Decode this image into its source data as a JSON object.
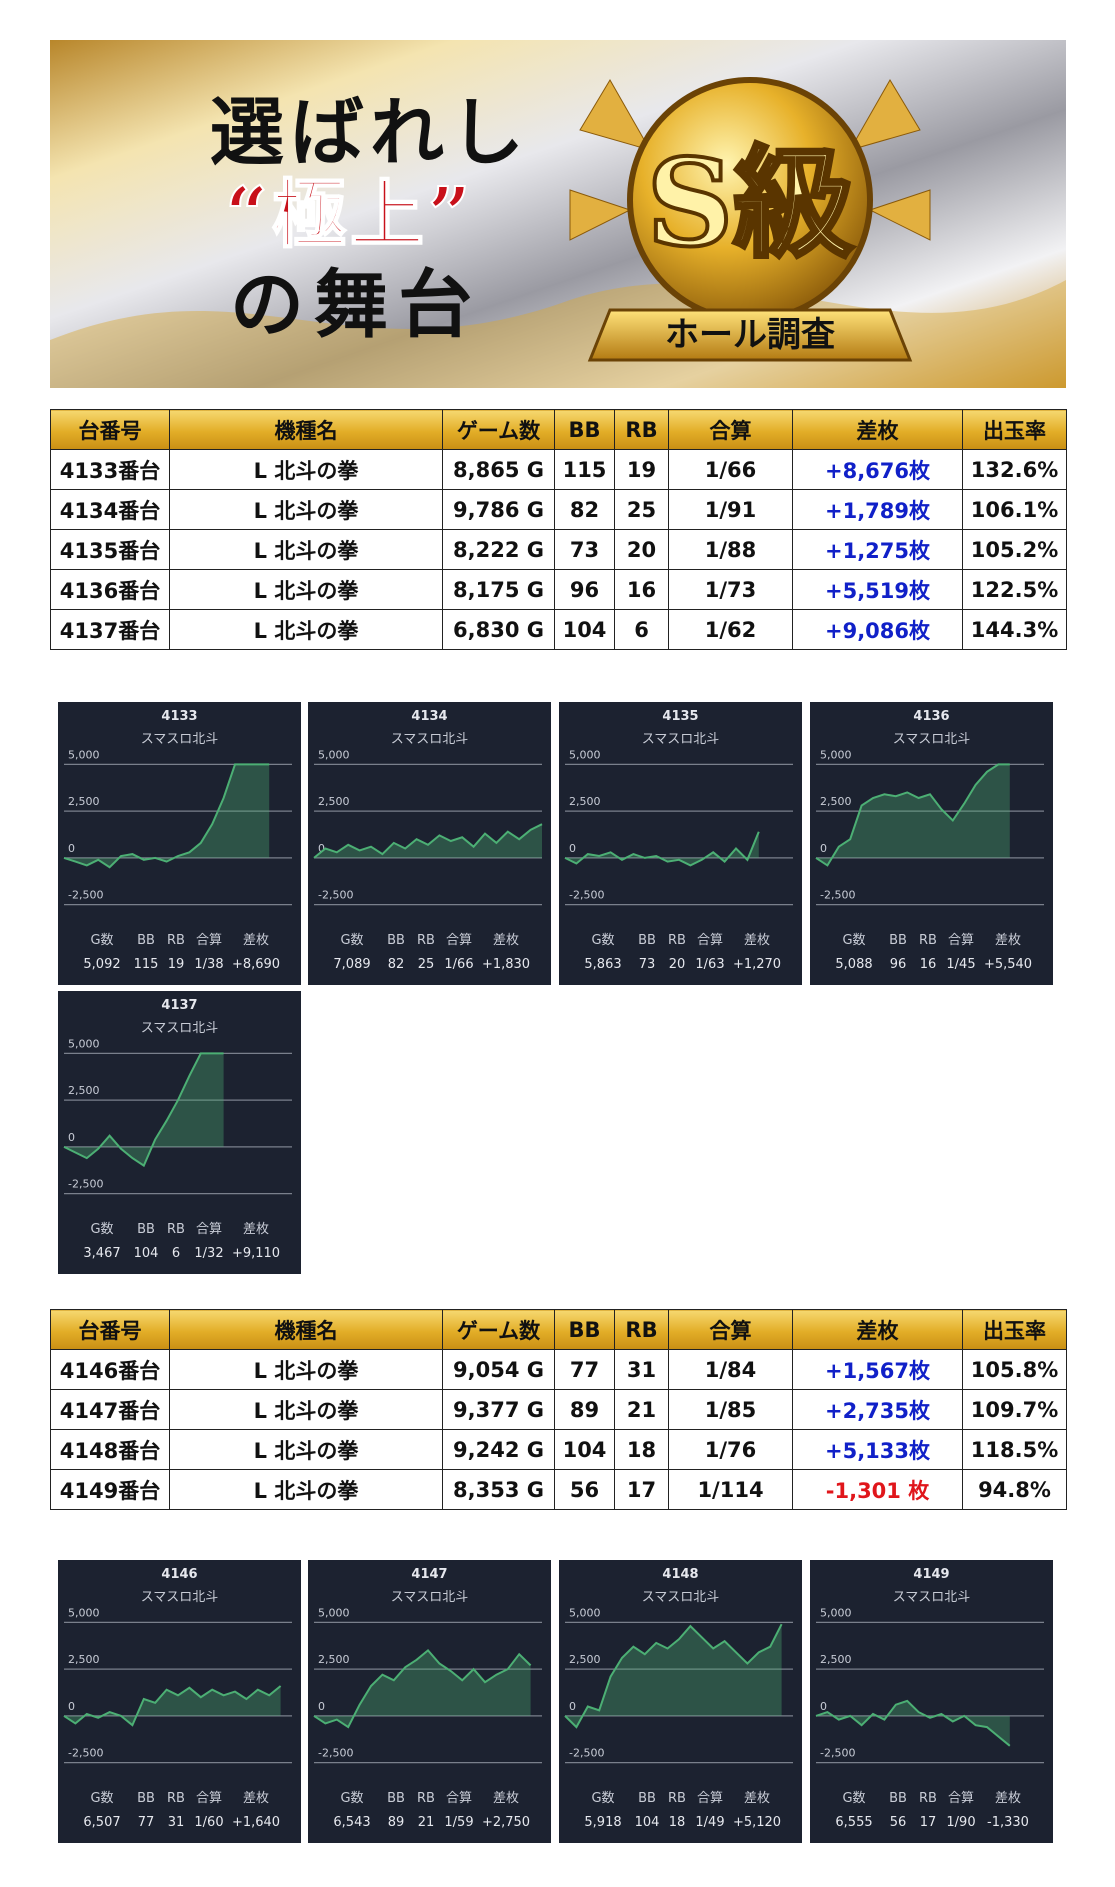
{
  "banner": {
    "line1": "選ばれし",
    "line2": "“極上”",
    "line3": "の舞台",
    "badge": "S級",
    "ribbon": "ホール調査"
  },
  "tables": [
    {
      "header": [
        "台番号",
        "機種名",
        "ゲーム数",
        "BB",
        "RB",
        "合算",
        "差枚",
        "出玉率"
      ],
      "rows": [
        [
          "4133番台",
          "L 北斗の拳",
          "8,865 G",
          "115",
          "19",
          "1/66",
          "+8,676枚",
          "132.6%"
        ],
        [
          "4134番台",
          "L 北斗の拳",
          "9,786 G",
          "82",
          "25",
          "1/91",
          "+1,789枚",
          "106.1%"
        ],
        [
          "4135番台",
          "L 北斗の拳",
          "8,222 G",
          "73",
          "20",
          "1/88",
          "+1,275枚",
          "105.2%"
        ],
        [
          "4136番台",
          "L 北斗の拳",
          "8,175 G",
          "96",
          "16",
          "1/73",
          "+5,519枚",
          "122.5%"
        ],
        [
          "4137番台",
          "L 北斗の拳",
          "6,830 G",
          "104",
          "6",
          "1/62",
          "+9,086枚",
          "144.3%"
        ]
      ]
    },
    {
      "header": [
        "台番号",
        "機種名",
        "ゲーム数",
        "BB",
        "RB",
        "合算",
        "差枚",
        "出玉率"
      ],
      "rows": [
        [
          "4146番台",
          "L 北斗の拳",
          "9,054 G",
          "77",
          "31",
          "1/84",
          "+1,567枚",
          "105.8%"
        ],
        [
          "4147番台",
          "L 北斗の拳",
          "9,377 G",
          "89",
          "21",
          "1/85",
          "+2,735枚",
          "109.7%"
        ],
        [
          "4148番台",
          "L 北斗の拳",
          "9,242 G",
          "104",
          "18",
          "1/76",
          "+5,133枚",
          "118.5%"
        ],
        [
          "4149番台",
          "L 北斗の拳",
          "8,353 G",
          "56",
          "17",
          "1/114",
          "-1,301 枚",
          "94.8%"
        ]
      ]
    }
  ],
  "chart_data": [
    {
      "type": "line",
      "title": "4133",
      "subtitle": "スマスロ北斗",
      "color": "#4caf74",
      "xlim": [
        0,
        20
      ],
      "ylim": [
        -3000,
        5500
      ],
      "yticks": [
        {
          "value": 5000,
          "label": "5,000"
        },
        {
          "value": 2500,
          "label": "2,500"
        },
        0,
        {
          "value": -2500,
          "label": "-2,500"
        }
      ],
      "grid": true,
      "values": [
        0,
        -200,
        -400,
        -100,
        -500,
        100,
        200,
        -100,
        0,
        -200,
        100,
        300,
        800,
        1800,
        3200,
        5000,
        5000,
        5000,
        5000
      ],
      "stats": {
        "labels": [
          "G数",
          "BB",
          "RB",
          "合算",
          "差枚"
        ],
        "values": [
          "5,092",
          "115",
          "19",
          "1/38",
          "+8,690"
        ]
      }
    },
    {
      "type": "line",
      "title": "4134",
      "subtitle": "スマスロ北斗",
      "color": "#4caf74",
      "xlim": [
        0,
        20
      ],
      "ylim": [
        -3000,
        5500
      ],
      "yticks": [
        {
          "value": 5000,
          "label": "5,000"
        },
        {
          "value": 2500,
          "label": "2,500"
        },
        0,
        {
          "value": -2500,
          "label": "-2,500"
        }
      ],
      "grid": true,
      "values": [
        0,
        500,
        300,
        700,
        400,
        600,
        200,
        800,
        500,
        1000,
        700,
        1200,
        900,
        1100,
        600,
        1300,
        800,
        1400,
        1000,
        1500,
        1800
      ],
      "stats": {
        "labels": [
          "G数",
          "BB",
          "RB",
          "合算",
          "差枚"
        ],
        "values": [
          "7,089",
          "82",
          "25",
          "1/66",
          "+1,830"
        ]
      }
    },
    {
      "type": "line",
      "title": "4135",
      "subtitle": "スマスロ北斗",
      "color": "#4caf74",
      "xlim": [
        0,
        20
      ],
      "ylim": [
        -3000,
        5500
      ],
      "yticks": [
        {
          "value": 5000,
          "label": "5,000"
        },
        {
          "value": 2500,
          "label": "2,500"
        },
        0,
        {
          "value": -2500,
          "label": "-2,500"
        }
      ],
      "grid": true,
      "values": [
        0,
        -300,
        200,
        100,
        300,
        -100,
        200,
        0,
        100,
        -200,
        -100,
        -400,
        -100,
        300,
        -200,
        500,
        -100,
        1400
      ],
      "stats": {
        "labels": [
          "G数",
          "BB",
          "RB",
          "合算",
          "差枚"
        ],
        "values": [
          "5,863",
          "73",
          "20",
          "1/63",
          "+1,270"
        ]
      }
    },
    {
      "type": "line",
      "title": "4136",
      "subtitle": "スマスロ北斗",
      "color": "#4caf74",
      "xlim": [
        0,
        20
      ],
      "ylim": [
        -3000,
        5500
      ],
      "yticks": [
        {
          "value": 5000,
          "label": "5,000"
        },
        {
          "value": 2500,
          "label": "2,500"
        },
        0,
        {
          "value": -2500,
          "label": "-2,500"
        }
      ],
      "grid": true,
      "values": [
        0,
        -400,
        600,
        1000,
        2800,
        3200,
        3400,
        3300,
        3500,
        3200,
        3400,
        2600,
        2000,
        2900,
        3900,
        4600,
        5000,
        5000
      ],
      "stats": {
        "labels": [
          "G数",
          "BB",
          "RB",
          "合算",
          "差枚"
        ],
        "values": [
          "5,088",
          "96",
          "16",
          "1/45",
          "+5,540"
        ]
      }
    },
    {
      "type": "line",
      "title": "4137",
      "subtitle": "スマスロ北斗",
      "color": "#4caf74",
      "xlim": [
        0,
        20
      ],
      "ylim": [
        -3000,
        5500
      ],
      "yticks": [
        {
          "value": 5000,
          "label": "5,000"
        },
        {
          "value": 2500,
          "label": "2,500"
        },
        0,
        {
          "value": -2500,
          "label": "-2,500"
        }
      ],
      "grid": true,
      "values": [
        0,
        -300,
        -600,
        -100,
        600,
        -100,
        -600,
        -1000,
        400,
        1400,
        2500,
        3800,
        5000,
        5000,
        5000
      ],
      "stats": {
        "labels": [
          "G数",
          "BB",
          "RB",
          "合算",
          "差枚"
        ],
        "values": [
          "3,467",
          "104",
          "6",
          "1/32",
          "+9,110"
        ]
      }
    },
    {
      "type": "line",
      "title": "4146",
      "subtitle": "スマスロ北斗",
      "color": "#4caf74",
      "xlim": [
        0,
        20
      ],
      "ylim": [
        -3000,
        5500
      ],
      "yticks": [
        {
          "value": 5000,
          "label": "5,000"
        },
        {
          "value": 2500,
          "label": "2,500"
        },
        0,
        {
          "value": -2500,
          "label": "-2,500"
        }
      ],
      "grid": true,
      "values": [
        0,
        -400,
        100,
        -100,
        200,
        0,
        -500,
        900,
        700,
        1400,
        1100,
        1500,
        1000,
        1400,
        1100,
        1300,
        900,
        1400,
        1100,
        1600
      ],
      "stats": {
        "labels": [
          "G数",
          "BB",
          "RB",
          "合算",
          "差枚"
        ],
        "values": [
          "6,507",
          "77",
          "31",
          "1/60",
          "+1,640"
        ]
      }
    },
    {
      "type": "line",
      "title": "4147",
      "subtitle": "スマスロ北斗",
      "color": "#4caf74",
      "xlim": [
        0,
        20
      ],
      "ylim": [
        -3000,
        5500
      ],
      "yticks": [
        {
          "value": 5000,
          "label": "5,000"
        },
        {
          "value": 2500,
          "label": "2,500"
        },
        0,
        {
          "value": -2500,
          "label": "-2,500"
        }
      ],
      "grid": true,
      "values": [
        0,
        -400,
        -200,
        -600,
        600,
        1600,
        2200,
        1900,
        2600,
        3000,
        3500,
        2800,
        2400,
        1900,
        2500,
        1800,
        2200,
        2500,
        3300,
        2700
      ],
      "stats": {
        "labels": [
          "G数",
          "BB",
          "RB",
          "合算",
          "差枚"
        ],
        "values": [
          "6,543",
          "89",
          "21",
          "1/59",
          "+2,750"
        ]
      }
    },
    {
      "type": "line",
      "title": "4148",
      "subtitle": "スマスロ北斗",
      "color": "#4caf74",
      "xlim": [
        0,
        20
      ],
      "ylim": [
        -3000,
        5500
      ],
      "yticks": [
        {
          "value": 5000,
          "label": "5,000"
        },
        {
          "value": 2500,
          "label": "2,500"
        },
        0,
        {
          "value": -2500,
          "label": "-2,500"
        }
      ],
      "grid": true,
      "values": [
        0,
        -600,
        500,
        300,
        2100,
        3100,
        3700,
        3300,
        3900,
        3600,
        4100,
        4800,
        4200,
        3600,
        4000,
        3400,
        2800,
        3400,
        3700,
        4900
      ],
      "stats": {
        "labels": [
          "G数",
          "BB",
          "RB",
          "合算",
          "差枚"
        ],
        "values": [
          "5,918",
          "104",
          "18",
          "1/49",
          "+5,120"
        ]
      }
    },
    {
      "type": "line",
      "title": "4149",
      "subtitle": "スマスロ北斗",
      "color": "#4caf74",
      "xlim": [
        0,
        20
      ],
      "ylim": [
        -3000,
        5500
      ],
      "yticks": [
        {
          "value": 5000,
          "label": "5,000"
        },
        {
          "value": 2500,
          "label": "2,500"
        },
        0,
        {
          "value": -2500,
          "label": "-2,500"
        }
      ],
      "grid": true,
      "values": [
        0,
        200,
        -200,
        0,
        -500,
        100,
        -200,
        600,
        800,
        200,
        -100,
        100,
        -300,
        0,
        -500,
        -600,
        -1100,
        -1600
      ],
      "stats": {
        "labels": [
          "G数",
          "BB",
          "RB",
          "合算",
          "差枚"
        ],
        "values": [
          "6,555",
          "56",
          "17",
          "1/90",
          "-1,330"
        ]
      }
    }
  ]
}
